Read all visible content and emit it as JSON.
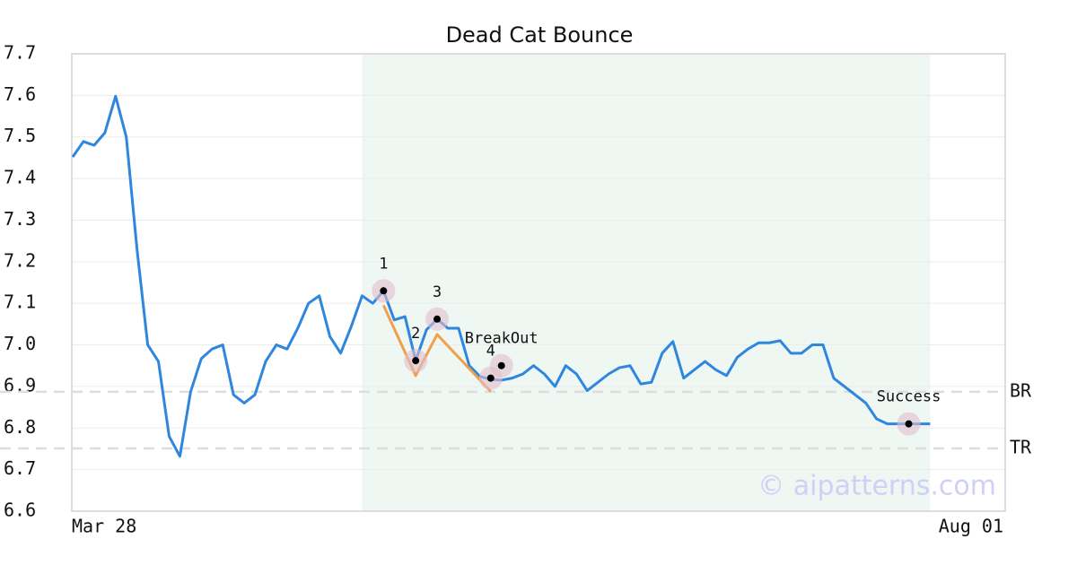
{
  "chart_data": {
    "type": "line",
    "title": "Dead Cat Bounce",
    "watermark": "© aipatterns.com",
    "categories": [
      "Mar 28",
      null,
      null,
      null,
      null,
      null,
      null,
      null,
      null,
      null,
      null,
      null,
      null,
      null,
      null,
      null,
      null,
      null,
      null,
      null,
      null,
      null,
      null,
      null,
      null,
      null,
      null,
      null,
      null,
      null,
      null,
      null,
      null,
      null,
      null,
      null,
      null,
      null,
      null,
      null,
      null,
      null,
      null,
      null,
      null,
      null,
      null,
      null,
      null,
      null,
      null,
      null,
      null,
      null,
      null,
      null,
      null,
      null,
      null,
      null,
      null,
      null,
      null,
      null,
      null,
      null,
      null,
      null,
      null,
      null,
      null,
      null,
      null,
      null,
      null,
      null,
      null,
      null,
      null,
      null,
      null,
      null,
      null,
      null,
      null,
      null,
      null,
      "Aug 01"
    ],
    "series": [
      {
        "color": "#2e86de",
        "values": [
          7.452,
          7.489,
          7.48,
          7.51,
          7.598,
          7.5,
          7.23,
          7.0,
          6.96,
          6.78,
          6.732,
          6.887,
          6.967,
          6.99,
          7.0,
          6.88,
          6.86,
          6.88,
          6.96,
          7.0,
          6.99,
          7.04,
          7.1,
          7.118,
          7.02,
          6.98,
          7.045,
          7.118,
          7.1,
          7.13,
          7.06,
          7.068,
          6.962,
          7.036,
          7.062,
          7.04,
          7.04,
          6.95,
          6.924,
          6.917,
          6.915,
          6.92,
          6.93,
          6.95,
          6.93,
          6.9,
          6.95,
          6.93,
          6.89,
          6.91,
          6.93,
          6.945,
          6.95,
          6.906,
          6.91,
          6.98,
          7.008,
          6.92,
          6.94,
          6.96,
          6.94,
          6.926,
          6.97,
          6.99,
          7.005,
          7.005,
          7.01,
          6.98,
          6.98,
          7.0,
          7.0,
          6.92,
          6.9,
          6.88,
          6.86,
          6.822,
          6.81,
          6.81,
          6.81,
          6.81,
          6.81,
          null,
          null,
          null,
          null,
          null,
          null,
          null
        ]
      }
    ],
    "pattern": {
      "color": "#f0a04b",
      "x": [
        29,
        32,
        34,
        39
      ],
      "values": [
        7.095,
        6.926,
        7.025,
        6.888
      ]
    },
    "points": [
      {
        "label": "1",
        "x": 29,
        "value": 7.13
      },
      {
        "label": "2",
        "x": 32,
        "value": 6.962
      },
      {
        "label": "3",
        "x": 34,
        "value": 7.062
      },
      {
        "label": "4",
        "x": 39,
        "value": 6.92
      },
      {
        "label": "BreakOut",
        "x": 40,
        "value": 6.95
      },
      {
        "label": "Success",
        "x": 78,
        "value": 6.81
      }
    ],
    "levels": [
      {
        "label": "BR",
        "value": 6.887
      },
      {
        "label": "TR",
        "value": 6.751
      }
    ],
    "highlight": [
      27,
      80
    ],
    "ylim": [
      6.6,
      7.7
    ],
    "yticks": [
      6.6,
      6.7,
      6.8,
      6.9,
      {
        "value": 7,
        "label": "7.0"
      },
      7.1,
      7.2,
      7.3,
      7.4,
      7.5,
      7.6,
      7.7
    ],
    "grid": true
  }
}
